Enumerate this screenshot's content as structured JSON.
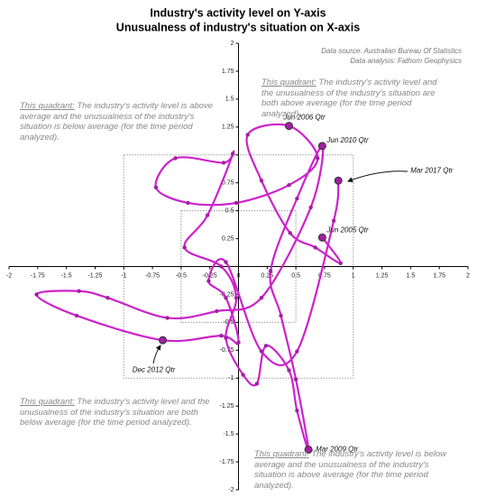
{
  "chart_data": {
    "type": "line",
    "title": [
      "Industry's activity level on Y-axis",
      "Unusualness of industry's situation on X-axis"
    ],
    "source": [
      "Data source: Australian Bureau Of Statistics",
      "Data analysis: Fathom Geophysics"
    ],
    "xlim": [
      -2,
      2
    ],
    "ylim": [
      -2,
      2
    ],
    "xticks": [
      -2,
      -1.75,
      -1.5,
      -1.25,
      -1,
      -0.75,
      -0.5,
      -0.25,
      0,
      0.25,
      0.5,
      0.75,
      1,
      1.25,
      1.5,
      1.75,
      2
    ],
    "yticks": [
      -2,
      -1.75,
      -1.5,
      -1.25,
      -1,
      -0.75,
      -0.5,
      -0.25,
      0.25,
      0.5,
      0.75,
      1,
      1.25,
      1.5,
      1.75,
      2
    ],
    "reference_boxes": [
      1,
      0.5
    ],
    "color": "#cc22cc",
    "marker_color": "#a020a0",
    "x": [
      0.73,
      0.89,
      0.67,
      0.45,
      0.2,
      0.08,
      0.44,
      0.69,
      0.44,
      -0.02,
      -0.44,
      -0.72,
      -0.55,
      -0.13,
      -0.05,
      -0.27,
      -0.47,
      -0.15,
      -0.02,
      -0.11,
      0.04,
      0.16,
      0.24,
      0.44,
      0.51,
      0.61,
      0.5,
      0.37,
      0.28,
      0.51,
      0.73,
      0.63,
      0.2,
      -0.19,
      -0.62,
      -1.14,
      -1.39,
      -1.76,
      -1.41,
      -0.66,
      -0.15,
      0.0,
      -0.11,
      -0.26,
      -0.11,
      0.2,
      0.51,
      0.83,
      0.87
    ],
    "values": [
      0.26,
      0.03,
      0.17,
      0.3,
      0.77,
      1.18,
      1.26,
      0.97,
      0.73,
      0.57,
      0.57,
      0.71,
      0.97,
      0.93,
      1.01,
      0.46,
      0.17,
      0.0,
      -0.28,
      -0.64,
      -0.97,
      -1.05,
      -0.71,
      -0.93,
      -1.29,
      -1.64,
      -1.01,
      -0.44,
      -0.04,
      0.61,
      1.08,
      0.53,
      -0.28,
      -0.4,
      -0.46,
      -0.28,
      -0.22,
      -0.25,
      -0.44,
      -0.66,
      -0.62,
      -0.68,
      -0.28,
      -0.13,
      0.04,
      -0.76,
      -0.76,
      0.41,
      0.77
    ],
    "point_labels": [
      "Jun 2005 Qtr",
      null,
      null,
      null,
      null,
      null,
      "Jun 2006 Qtr",
      null,
      null,
      null,
      null,
      null,
      null,
      null,
      null,
      null,
      null,
      null,
      null,
      null,
      null,
      null,
      null,
      null,
      null,
      "Mar 2009 Qtr",
      null,
      null,
      null,
      null,
      "Jun 2010 Qtr",
      null,
      null,
      null,
      null,
      null,
      null,
      null,
      null,
      "Dec 2012 Qtr",
      null,
      null,
      null,
      null,
      null,
      null,
      null,
      null,
      "Mar 2017 Qtr"
    ],
    "quadrant_notes": [
      {
        "lead": "This quadrant:",
        "text": "The industry's activity level and the unusualness of the industry's situation are both above average (for the time period analyzed)."
      },
      {
        "lead": "This quadrant:",
        "text": "The industry's activity level is above average and the unusualness of the industry's situation is below average (for the time period analyzed)."
      },
      {
        "lead": "This quadrant:",
        "text": "The industry's activity level and the unusualness of the industry's situation are both below average (for the time period analyzed)."
      },
      {
        "lead": "This quadrant:",
        "text": "The industry's activity level is below average and the unusualness of the industry's situation is above average (for the time period analyzed)."
      }
    ]
  }
}
